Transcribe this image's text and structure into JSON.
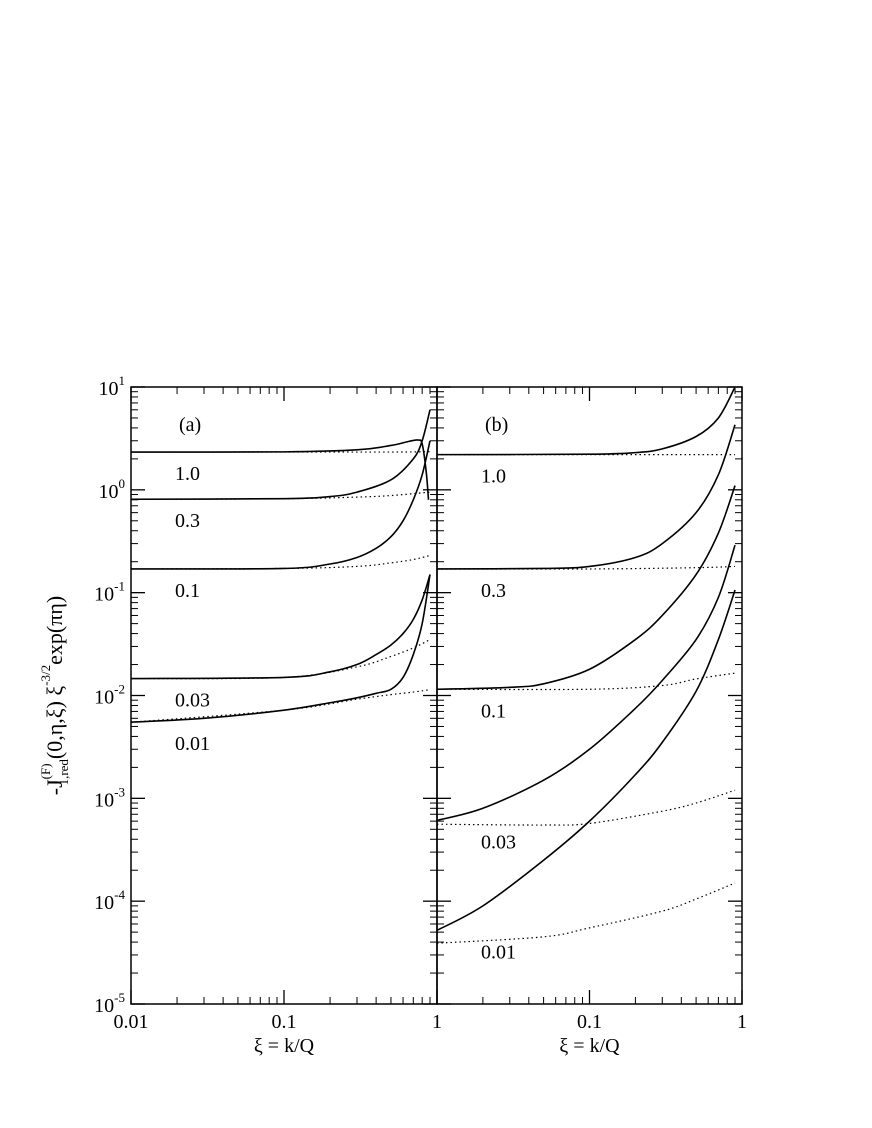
{
  "chart_data": [
    {
      "type": "line",
      "panel_label": "(a)",
      "x_label": "ξ = k/Q",
      "y_label": {
        "prefix": "-J",
        "sup": "(F)",
        "sub": "1,red",
        "mid": "(0,η,ξ) ξ",
        "sup2": "-3/2",
        "suffix": "exp(πη)"
      },
      "log_x": true,
      "log_y": true,
      "xlim": [
        0.01,
        1
      ],
      "ylim": [
        1e-05,
        10
      ],
      "xticks": [
        0.01,
        0.1,
        1
      ],
      "yticks": [
        {
          "value": 1e-05,
          "label": "10",
          "exponent": "-5"
        },
        {
          "value": 0.0001,
          "label": "10",
          "exponent": "-4"
        },
        {
          "value": 0.001,
          "label": "10",
          "exponent": "-3"
        },
        {
          "value": 0.01,
          "label": "10",
          "exponent": "-2"
        },
        {
          "value": 0.1,
          "label": "10",
          "exponent": "-1"
        },
        {
          "value": 1,
          "label": "10",
          "exponent": "0"
        },
        {
          "value": 10,
          "label": "10",
          "exponent": "1"
        }
      ],
      "color": "#000000",
      "series": [
        {
          "name": "1.0",
          "x": [
            0.01,
            0.1,
            0.3,
            0.5,
            0.65,
            0.75,
            0.8,
            0.85,
            0.88
          ],
          "values": [
            2.33,
            2.34,
            2.45,
            2.7,
            2.95,
            3.05,
            2.8,
            1.5,
            0.8
          ],
          "dotted_x": [
            0.01,
            0.1,
            0.5,
            0.9
          ],
          "dotted_values": [
            2.33,
            2.33,
            2.33,
            2.35
          ]
        },
        {
          "name": "0.3",
          "x": [
            0.01,
            0.1,
            0.2,
            0.3,
            0.5,
            0.7,
            0.8,
            0.9
          ],
          "values": [
            0.81,
            0.82,
            0.86,
            0.95,
            1.25,
            2.0,
            3.0,
            6.0
          ],
          "dotted_x": [
            0.01,
            0.1,
            0.3,
            0.5,
            0.9
          ],
          "dotted_values": [
            0.81,
            0.82,
            0.85,
            0.88,
            0.95
          ]
        },
        {
          "name": "0.1",
          "x": [
            0.01,
            0.1,
            0.2,
            0.3,
            0.4,
            0.5,
            0.6,
            0.7,
            0.8,
            0.9
          ],
          "values": [
            0.17,
            0.172,
            0.19,
            0.22,
            0.27,
            0.35,
            0.5,
            0.8,
            1.4,
            3.0
          ],
          "dotted_x": [
            0.01,
            0.1,
            0.3,
            0.5,
            0.7,
            0.9
          ],
          "dotted_values": [
            0.17,
            0.172,
            0.18,
            0.195,
            0.21,
            0.23
          ]
        },
        {
          "name": "0.03",
          "x": [
            0.01,
            0.1,
            0.2,
            0.3,
            0.4,
            0.5,
            0.6,
            0.7,
            0.8,
            0.9
          ],
          "values": [
            0.0146,
            0.015,
            0.017,
            0.02,
            0.025,
            0.031,
            0.04,
            0.055,
            0.085,
            0.15
          ],
          "dotted_x": [
            0.01,
            0.1,
            0.3,
            0.5,
            0.7,
            0.9
          ],
          "dotted_values": [
            0.0146,
            0.015,
            0.019,
            0.024,
            0.029,
            0.035
          ]
        },
        {
          "name": "0.01",
          "x": [
            0.01,
            0.03,
            0.1,
            0.2,
            0.3,
            0.4,
            0.5,
            0.6,
            0.7,
            0.8,
            0.9
          ],
          "values": [
            0.0055,
            0.006,
            0.0072,
            0.0085,
            0.0095,
            0.0105,
            0.0115,
            0.015,
            0.025,
            0.05,
            0.15
          ],
          "dotted_x": [
            0.01,
            0.1,
            0.3,
            0.5,
            0.7,
            0.9
          ],
          "dotted_values": [
            0.0055,
            0.0072,
            0.0092,
            0.0102,
            0.0108,
            0.0114
          ]
        }
      ]
    },
    {
      "type": "line",
      "panel_label": "(b)",
      "x_label": "ξ = k/Q",
      "log_x": true,
      "log_y": true,
      "xlim": [
        0.01,
        1
      ],
      "ylim": [
        1e-05,
        10
      ],
      "xticks": [
        0.1,
        1
      ],
      "yticks": [
        1e-05,
        0.0001,
        0.001,
        0.01,
        0.1,
        1,
        10
      ],
      "color": "#000000",
      "series": [
        {
          "name": "1.0",
          "x": [
            0.01,
            0.1,
            0.2,
            0.3,
            0.5,
            0.7,
            0.9
          ],
          "values": [
            2.2,
            2.22,
            2.3,
            2.5,
            3.3,
            5,
            10
          ],
          "dotted_x": [
            0.01,
            0.1,
            0.9
          ],
          "dotted_values": [
            2.2,
            2.2,
            2.2
          ]
        },
        {
          "name": "0.3",
          "x": [
            0.01,
            0.05,
            0.1,
            0.2,
            0.3,
            0.5,
            0.7,
            0.9
          ],
          "values": [
            0.17,
            0.172,
            0.18,
            0.22,
            0.3,
            0.6,
            1.4,
            4.3
          ],
          "dotted_x": [
            0.01,
            0.1,
            0.5,
            0.9
          ],
          "dotted_values": [
            0.17,
            0.17,
            0.175,
            0.18
          ]
        },
        {
          "name": "0.1",
          "x": [
            0.01,
            0.03,
            0.05,
            0.1,
            0.2,
            0.3,
            0.5,
            0.7,
            0.9
          ],
          "values": [
            0.0115,
            0.012,
            0.013,
            0.018,
            0.035,
            0.06,
            0.15,
            0.38,
            1.1
          ],
          "dotted_x": [
            0.01,
            0.1,
            0.3,
            0.5,
            0.9
          ],
          "dotted_values": [
            0.0115,
            0.0115,
            0.0125,
            0.0145,
            0.0165
          ]
        },
        {
          "name": "0.03",
          "x": [
            0.01,
            0.02,
            0.05,
            0.1,
            0.2,
            0.3,
            0.5,
            0.7,
            0.9
          ],
          "values": [
            0.00061,
            0.0008,
            0.0015,
            0.003,
            0.0075,
            0.014,
            0.035,
            0.09,
            0.29
          ],
          "dotted_x": [
            0.01,
            0.05,
            0.1,
            0.3,
            0.5,
            0.9
          ],
          "dotted_values": [
            0.00056,
            0.00055,
            0.00057,
            0.00075,
            0.0009,
            0.0012
          ]
        },
        {
          "name": "0.01",
          "x": [
            0.01,
            0.02,
            0.05,
            0.1,
            0.2,
            0.3,
            0.5,
            0.7,
            0.9
          ],
          "values": [
            5.2e-05,
            9e-05,
            0.00025,
            0.0006,
            0.0017,
            0.0035,
            0.011,
            0.035,
            0.106
          ],
          "dotted_x": [
            0.01,
            0.05,
            0.1,
            0.3,
            0.5,
            0.9
          ],
          "dotted_values": [
            3.9e-05,
            4.5e-05,
            5.5e-05,
            8e-05,
            0.000105,
            0.00015
          ]
        }
      ]
    }
  ]
}
